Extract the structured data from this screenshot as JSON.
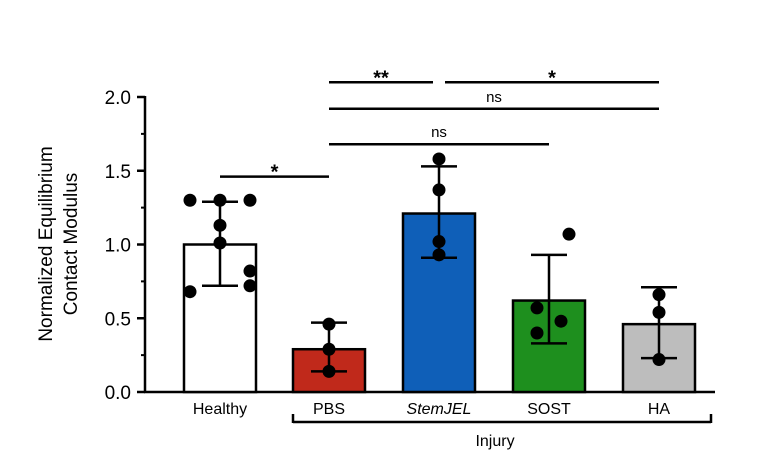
{
  "chart_data": {
    "type": "bar",
    "ylabel": [
      "Normalized Equilibrium",
      "Contact Modulus"
    ],
    "ylim": [
      0,
      2.0
    ],
    "yticks": [
      "0.0",
      "0.5",
      "1.0",
      "1.5",
      "2.0"
    ],
    "group_label": "Injury",
    "categories": [
      {
        "label": "Healthy",
        "italic": false,
        "color": "#ffffff",
        "mean": 1.0,
        "err_hi": 1.29,
        "err_lo": 0.72,
        "points": [
          1.3,
          1.3,
          1.3,
          1.13,
          1.01,
          0.82,
          0.68,
          0.72
        ]
      },
      {
        "label": "PBS",
        "italic": false,
        "color": "#c0291b",
        "mean": 0.29,
        "err_hi": 0.47,
        "err_lo": 0.14,
        "points": [
          0.46,
          0.29,
          0.14
        ]
      },
      {
        "label": "StemJEL",
        "italic": true,
        "color": "#0f5fb8",
        "mean": 1.21,
        "err_hi": 1.53,
        "err_lo": 0.91,
        "points": [
          1.58,
          1.37,
          1.02,
          0.93
        ]
      },
      {
        "label": "SOST",
        "italic": false,
        "color": "#1e8f1e",
        "mean": 0.62,
        "err_hi": 0.93,
        "err_lo": 0.33,
        "points": [
          1.07,
          0.57,
          0.48,
          0.4
        ]
      },
      {
        "label": "HA",
        "italic": false,
        "color": "#bdbdbd",
        "mean": 0.46,
        "err_hi": 0.71,
        "err_lo": 0.23,
        "points": [
          0.66,
          0.54,
          0.22
        ]
      }
    ],
    "comparisons": [
      {
        "from": 0,
        "to": 1,
        "y": 1.46,
        "label": "*"
      },
      {
        "from": 1,
        "to": 3,
        "y": 1.68,
        "label": "ns"
      },
      {
        "from": 1,
        "to": 4,
        "y": 1.92,
        "label": "ns"
      },
      {
        "from": 1,
        "to": 2,
        "y": 2.1,
        "label": "**"
      },
      {
        "from": 2,
        "to": 4,
        "y": 2.1,
        "label": "*"
      }
    ]
  }
}
